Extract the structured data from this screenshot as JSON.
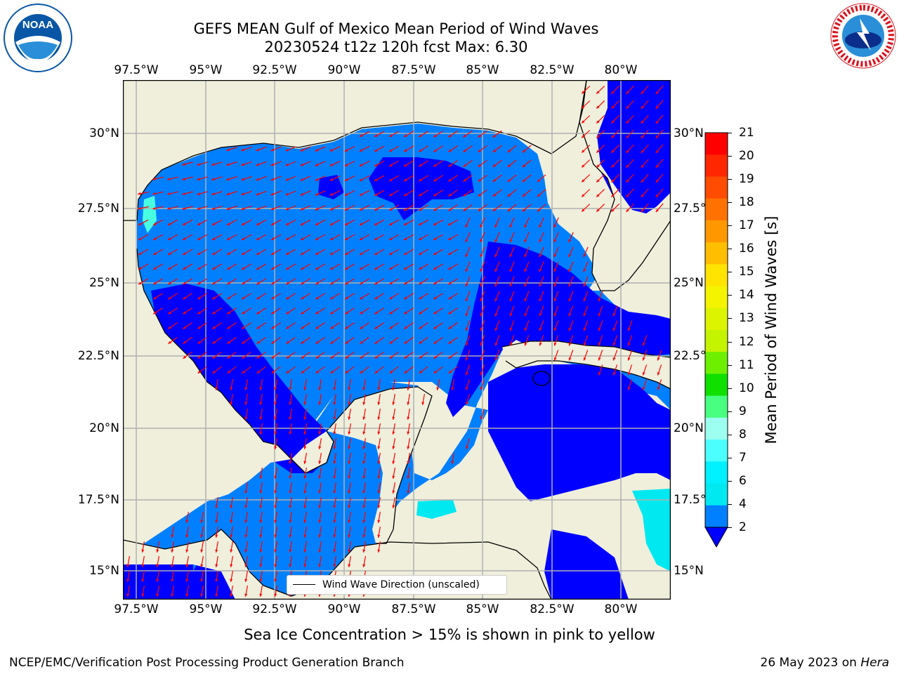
{
  "header": {
    "title_line1": "GEFS MEAN Gulf of Mexico Mean Period of Wind Waves",
    "title_line2": "20230524 t12z 120h fcst   Max: 6.30"
  },
  "logos": {
    "left": {
      "text": "NOAA",
      "ring_text": "NATIONAL OCEANIC AND ATMOSPHERIC ADMINISTRATION · U.S. DEPARTMENT OF COMMERCE",
      "color": "#0a56a6"
    },
    "right": {
      "ring_text": "NATIONAL WEATHER SERVICE",
      "color": "#d8141e"
    }
  },
  "map": {
    "lon_ticks_top": [
      "97.5°W",
      "95°W",
      "92.5°W",
      "90°W",
      "87.5°W",
      "85°W",
      "82.5°W",
      "80°W"
    ],
    "lon_ticks_bottom": [
      "97.5°W",
      "95°W",
      "92.5°W",
      "90°W",
      "87.5°W",
      "85°W",
      "82.5°W",
      "80°W"
    ],
    "lat_ticks_left": [
      "30°N",
      "27.5°N",
      "25°N",
      "22.5°N",
      "20°N",
      "17.5°N",
      "15°N"
    ],
    "lat_ticks_right": [
      "30°N",
      "27.5°",
      "25°N",
      "22.5°",
      "20°N",
      "17.5°",
      "15°N"
    ],
    "lon_values": [
      -97.5,
      -95,
      -92.5,
      -90,
      -87.5,
      -85,
      -82.5,
      -80
    ],
    "lat_values": [
      30,
      27.5,
      25,
      22.5,
      20,
      17.5,
      15
    ],
    "land_color": "#efefdc",
    "legend_label": "Wind Wave Direction (unscaled)",
    "arrow_color": "#ff0000"
  },
  "colorbar": {
    "label": "Mean Period of Wind Waves [s]",
    "ticks": [
      "21",
      "20",
      "19",
      "18",
      "17",
      "16",
      "15",
      "14",
      "13",
      "12",
      "11",
      "10",
      "9",
      "8",
      "7",
      "6",
      "4",
      "2"
    ],
    "colors": [
      "#ff0000",
      "#ff2600",
      "#ff4c00",
      "#ff7200",
      "#ff9800",
      "#ffbe00",
      "#ffe400",
      "#f4f400",
      "#dcf400",
      "#c4f400",
      "#6cf000",
      "#10e000",
      "#48ff80",
      "#9cfff0",
      "#4cffff",
      "#00f0ff",
      "#00e8f0",
      "#0080ff",
      "#0000ff"
    ]
  },
  "subtitle": "Sea Ice Concentration > 15% is shown in pink to yellow",
  "footer": {
    "left": "NCEP/EMC/Verification Post Processing Product Generation Branch",
    "right_date": "26 May 2023 on ",
    "right_host": "Hera"
  }
}
